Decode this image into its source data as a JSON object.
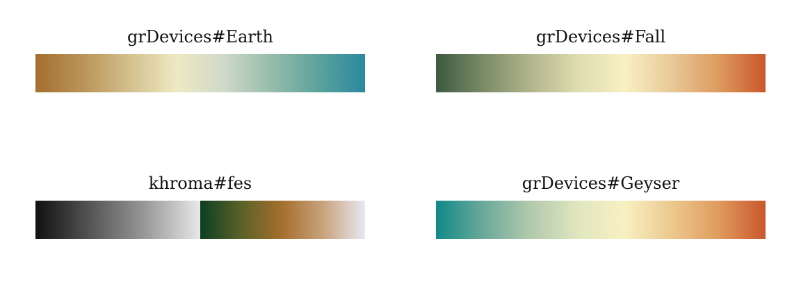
{
  "palettes": [
    {
      "title": "grDevices#Earth",
      "gradients": [
        [
          "#a36f2f",
          "#b99358",
          "#d3c08d",
          "#eee9c3",
          "#cfd9c9",
          "#97bcaa",
          "#5da39b",
          "#2a889f"
        ]
      ]
    },
    {
      "title": "grDevices#Fall",
      "gradients": [
        [
          "#3d5941",
          "#7a8b66",
          "#b1b48c",
          "#dddcb0",
          "#f8f0c3",
          "#e9c998",
          "#dd9b5f",
          "#ca562c"
        ]
      ]
    },
    {
      "title": "khroma#fes",
      "gradients": [
        [
          "#111111",
          "#555555",
          "#999999",
          "#e8e8e8"
        ],
        [
          "#0c3f24",
          "#5b6128",
          "#a66f2e",
          "#c9a47e",
          "#e8e8f4"
        ]
      ]
    },
    {
      "title": "grDevices#Geyser",
      "gradients": [
        [
          "#0f8a88",
          "#6aa99a",
          "#b2c9ad",
          "#dfe6bf",
          "#f8f0c2",
          "#ecc98f",
          "#e09b5e",
          "#ca562c"
        ]
      ]
    }
  ]
}
